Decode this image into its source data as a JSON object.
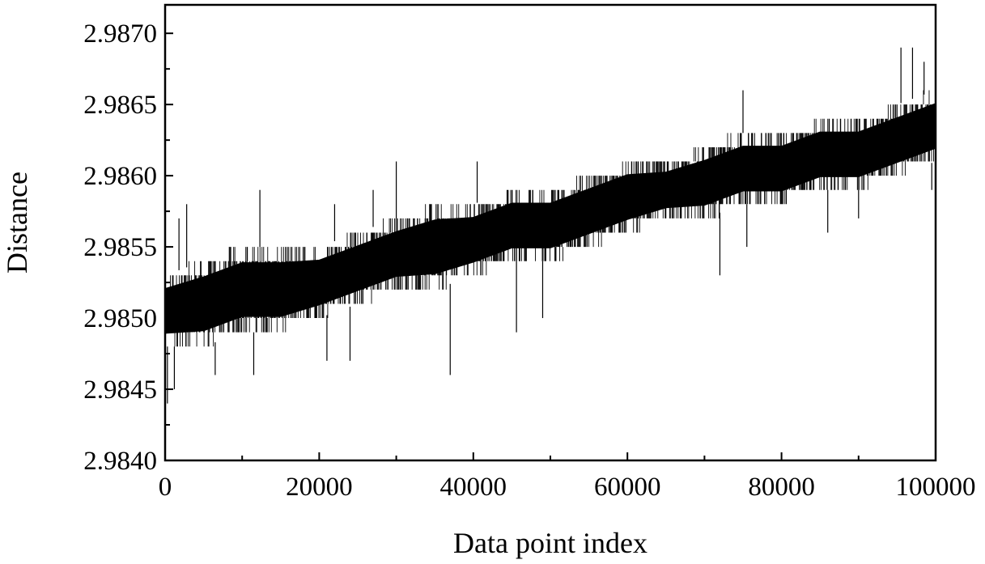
{
  "chart_data": {
    "type": "line",
    "title": "",
    "xlabel": "Data point index",
    "ylabel": "Distance",
    "xlim": [
      0,
      100000
    ],
    "ylim": [
      2.984,
      2.9872
    ],
    "x_ticks": [
      0,
      20000,
      40000,
      60000,
      80000,
      100000
    ],
    "x_tick_labels": [
      "0",
      "20000",
      "40000",
      "60000",
      "80000",
      "100000"
    ],
    "y_ticks": [
      2.984,
      2.9845,
      2.985,
      2.9855,
      2.986,
      2.9865,
      2.987
    ],
    "y_tick_labels": [
      "2.9840",
      "2.9845",
      "2.9850",
      "2.9855",
      "2.9860",
      "2.9865",
      "2.9870"
    ],
    "grid": false,
    "legend": "none",
    "line_color": "#000000",
    "series": [
      {
        "x": [
          0,
          5000,
          10000,
          15000,
          20000,
          25000,
          30000,
          35000,
          40000,
          45000,
          50000,
          55000,
          60000,
          65000,
          70000,
          75000,
          80000,
          85000,
          90000,
          95000,
          100000
        ],
        "band_low": [
          2.9848,
          2.9848,
          2.9849,
          2.9849,
          2.985,
          2.9851,
          2.9852,
          2.9852,
          2.9853,
          2.9854,
          2.9854,
          2.9855,
          2.9856,
          2.9857,
          2.9857,
          2.9858,
          2.9858,
          2.9859,
          2.9859,
          2.986,
          2.9861
        ],
        "band_high": [
          2.9853,
          2.9854,
          2.9855,
          2.9855,
          2.9855,
          2.9856,
          2.9857,
          2.9858,
          2.9858,
          2.9859,
          2.9859,
          2.986,
          2.9861,
          2.9861,
          2.9862,
          2.9863,
          2.9863,
          2.9864,
          2.9864,
          2.9865,
          2.9866
        ],
        "outliers": [
          {
            "x": 300,
            "y": 2.9844
          },
          {
            "x": 1200,
            "y": 2.9845
          },
          {
            "x": 1800,
            "y": 2.9857
          },
          {
            "x": 2800,
            "y": 2.9858
          },
          {
            "x": 6500,
            "y": 2.9846
          },
          {
            "x": 11500,
            "y": 2.9846
          },
          {
            "x": 12300,
            "y": 2.9859
          },
          {
            "x": 21000,
            "y": 2.9847
          },
          {
            "x": 22000,
            "y": 2.9858
          },
          {
            "x": 24000,
            "y": 2.9847
          },
          {
            "x": 27000,
            "y": 2.9859
          },
          {
            "x": 30000,
            "y": 2.9861
          },
          {
            "x": 37000,
            "y": 2.9846
          },
          {
            "x": 40500,
            "y": 2.9861
          },
          {
            "x": 45600,
            "y": 2.9849
          },
          {
            "x": 49000,
            "y": 2.985
          },
          {
            "x": 72000,
            "y": 2.9853
          },
          {
            "x": 75000,
            "y": 2.9866
          },
          {
            "x": 75500,
            "y": 2.9855
          },
          {
            "x": 86000,
            "y": 2.9856
          },
          {
            "x": 90000,
            "y": 2.9857
          },
          {
            "x": 95500,
            "y": 2.9869
          },
          {
            "x": 97000,
            "y": 2.9869
          },
          {
            "x": 98500,
            "y": 2.9868
          },
          {
            "x": 99500,
            "y": 2.9859
          }
        ]
      }
    ]
  }
}
